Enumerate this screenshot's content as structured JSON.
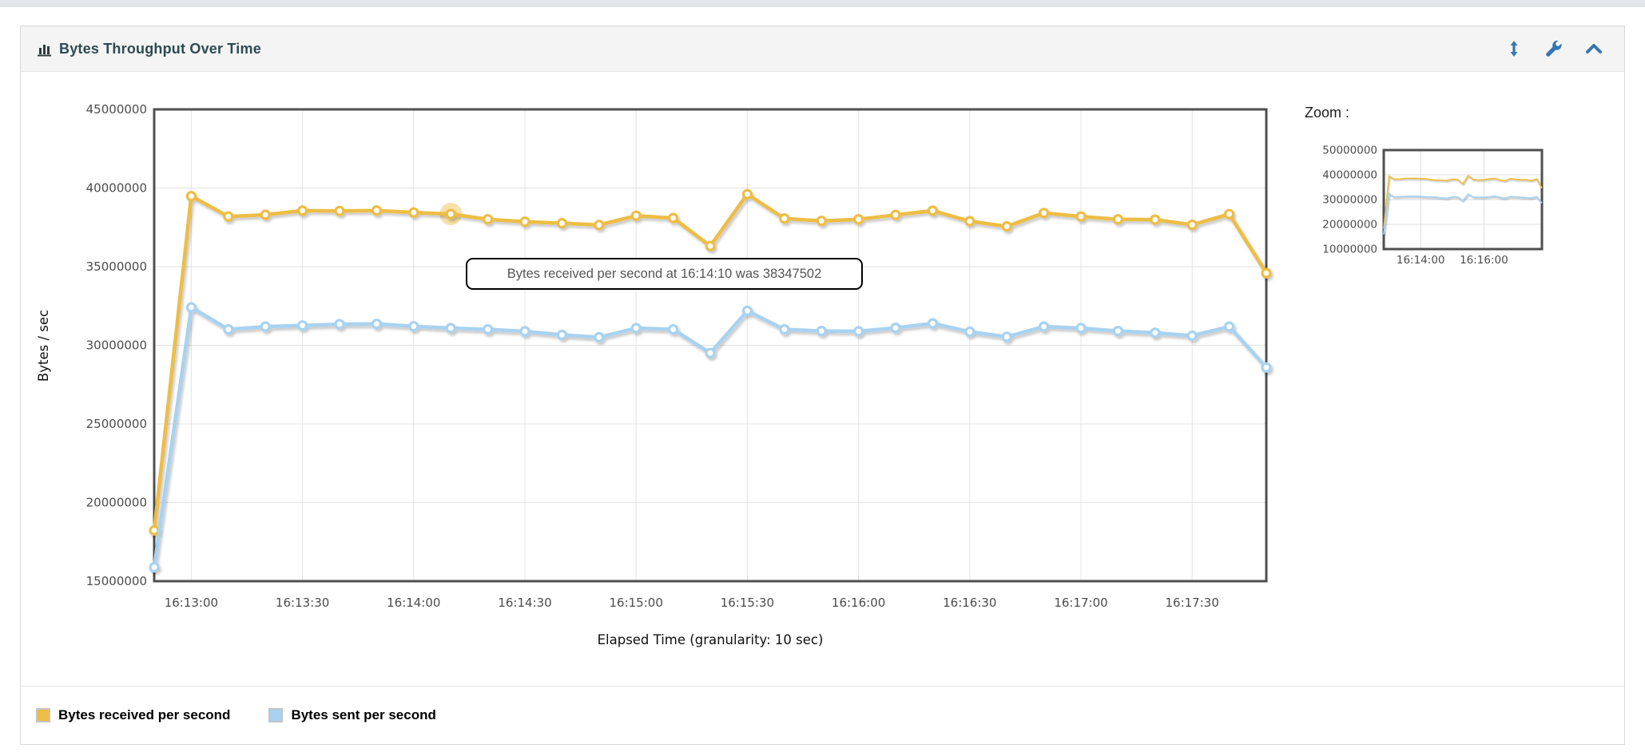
{
  "panel": {
    "header": {
      "title": "Bytes Throughput Over Time",
      "title_icon": "bar-chart-icon",
      "title_color": "#2d4a52",
      "icon_color": "#3477b2",
      "icons": [
        "resize-vertical-icon",
        "wrench-icon",
        "chevron-up-icon"
      ]
    },
    "legend": [
      {
        "label": "Bytes received per second",
        "color": "#EDBD45"
      },
      {
        "label": "Bytes sent per second",
        "color": "#A8D2F0"
      }
    ]
  },
  "tooltip": {
    "text": "Bytes received per second at 16:14:10 was 38347502"
  },
  "zoom_panel": {
    "label": "Zoom :"
  },
  "chart_data": [
    {
      "type": "line",
      "role": "main",
      "xlabel": "Elapsed Time (granularity: 10 sec)",
      "ylabel": "Bytes / sec",
      "grid": true,
      "ylim": [
        15000000,
        45000000
      ],
      "yticks": [
        15000000,
        20000000,
        25000000,
        30000000,
        35000000,
        40000000,
        45000000
      ],
      "xticks": [
        "16:13:00",
        "16:13:30",
        "16:14:00",
        "16:14:30",
        "16:15:00",
        "16:15:30",
        "16:16:00",
        "16:16:30",
        "16:17:00",
        "16:17:30"
      ],
      "x": [
        "16:12:50",
        "16:13:00",
        "16:13:10",
        "16:13:20",
        "16:13:30",
        "16:13:40",
        "16:13:50",
        "16:14:00",
        "16:14:10",
        "16:14:20",
        "16:14:30",
        "16:14:40",
        "16:14:50",
        "16:15:00",
        "16:15:10",
        "16:15:20",
        "16:15:30",
        "16:15:40",
        "16:15:50",
        "16:16:00",
        "16:16:10",
        "16:16:20",
        "16:16:30",
        "16:16:40",
        "16:16:50",
        "16:17:00",
        "16:17:10",
        "16:17:20",
        "16:17:30",
        "16:17:40",
        "16:17:50"
      ],
      "series": [
        {
          "name": "Bytes received per second",
          "color": "#EDBD45",
          "values": [
            18230000,
            39480000,
            38190000,
            38300000,
            38560000,
            38540000,
            38570000,
            38440000,
            38347502,
            38010000,
            37860000,
            37760000,
            37650000,
            38240000,
            38090000,
            36310000,
            39610000,
            38060000,
            37910000,
            38010000,
            38290000,
            38560000,
            37890000,
            37560000,
            38410000,
            38190000,
            38010000,
            37990000,
            37660000,
            38340000,
            34590000
          ]
        },
        {
          "name": "Bytes sent per second",
          "color": "#A8D2F0",
          "values": [
            15890000,
            32410000,
            31010000,
            31190000,
            31260000,
            31340000,
            31360000,
            31210000,
            31090000,
            31010000,
            30890000,
            30660000,
            30510000,
            31090000,
            31010000,
            29510000,
            32190000,
            31010000,
            30910000,
            30890000,
            31110000,
            31390000,
            30860000,
            30540000,
            31190000,
            31090000,
            30910000,
            30790000,
            30610000,
            31190000,
            28590000
          ]
        }
      ],
      "highlight": {
        "series_index": 0,
        "x": "16:14:10",
        "value": 38347502
      }
    },
    {
      "type": "line",
      "role": "zoom-overview",
      "ylim": [
        10000000,
        50000000
      ],
      "yticks": [
        10000000,
        20000000,
        30000000,
        40000000,
        50000000
      ],
      "xticks": [
        "16:14:00",
        "16:16:00"
      ],
      "series_from": "main"
    }
  ]
}
